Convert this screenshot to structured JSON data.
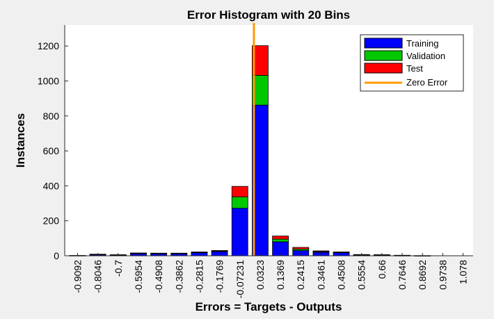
{
  "colors": {
    "training": "#0000ff",
    "validation": "#00c800",
    "test": "#ff0000",
    "zero_error": "#ff9900",
    "bar_edge": "#000000"
  },
  "chart_data": {
    "type": "bar",
    "stacked": true,
    "title": "Error Histogram with 20 Bins",
    "xlabel": "Errors = Targets - Outputs",
    "ylabel": "Instances",
    "ylim": [
      0,
      1320
    ],
    "yticks": [
      0,
      200,
      400,
      600,
      800,
      1000,
      1200
    ],
    "grid": false,
    "legend_position": "top-right",
    "categories": [
      "-0.9092",
      "-0.8046",
      "-0.7",
      "-0.5954",
      "-0.4908",
      "-0.3862",
      "-0.2815",
      "-0.1769",
      "-0.07231",
      "0.0323",
      "0.1369",
      "0.2415",
      "0.3461",
      "0.4508",
      "0.5554",
      "0.66",
      "0.7646",
      "0.8692",
      "0.9738",
      "1.078"
    ],
    "series": [
      {
        "name": "Training",
        "color_key": "training",
        "values": [
          2,
          7,
          4,
          14,
          13,
          13,
          18,
          24,
          272,
          862,
          80,
          30,
          20,
          18,
          5,
          4,
          2,
          1,
          0,
          0
        ]
      },
      {
        "name": "Validation",
        "color_key": "validation",
        "values": [
          0,
          1,
          1,
          1,
          1,
          1,
          2,
          4,
          65,
          170,
          15,
          8,
          4,
          2,
          1,
          1,
          1,
          0,
          0,
          0
        ]
      },
      {
        "name": "Test",
        "color_key": "test",
        "values": [
          0,
          1,
          1,
          1,
          1,
          1,
          2,
          2,
          60,
          170,
          18,
          10,
          4,
          2,
          1,
          1,
          0,
          0,
          0,
          0
        ]
      }
    ],
    "zero_error": {
      "name": "Zero Error",
      "x": 0
    }
  }
}
